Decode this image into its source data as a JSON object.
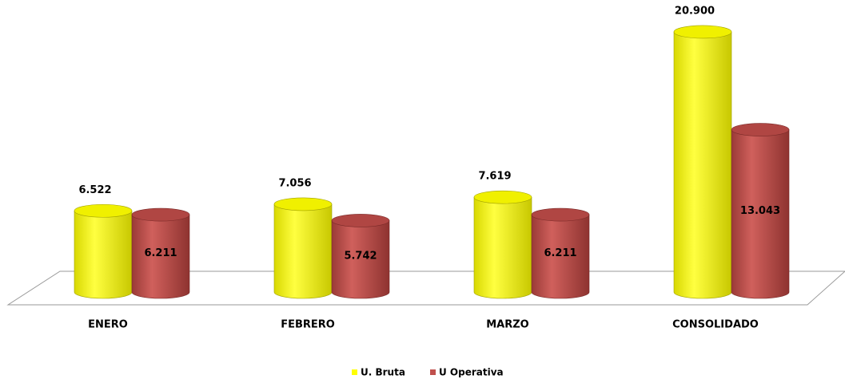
{
  "chart_data": {
    "type": "bar",
    "categories": [
      "ENERO",
      "FEBRERO",
      "MARZO",
      "CONSOLIDADO"
    ],
    "series": [
      {
        "name": "U. Bruta",
        "color": "#ffff00",
        "values": [
          6.522,
          7.056,
          7.619,
          20.9
        ],
        "value_labels": [
          "6.522",
          "7.056",
          "7.619",
          "20.900"
        ]
      },
      {
        "name": "U Operativa",
        "color": "#c0504d",
        "values": [
          6.211,
          5.742,
          6.211,
          13.043
        ],
        "value_labels": [
          "6.211",
          "5.742",
          "6.211",
          "13.043"
        ]
      }
    ],
    "legend": "bottom"
  }
}
